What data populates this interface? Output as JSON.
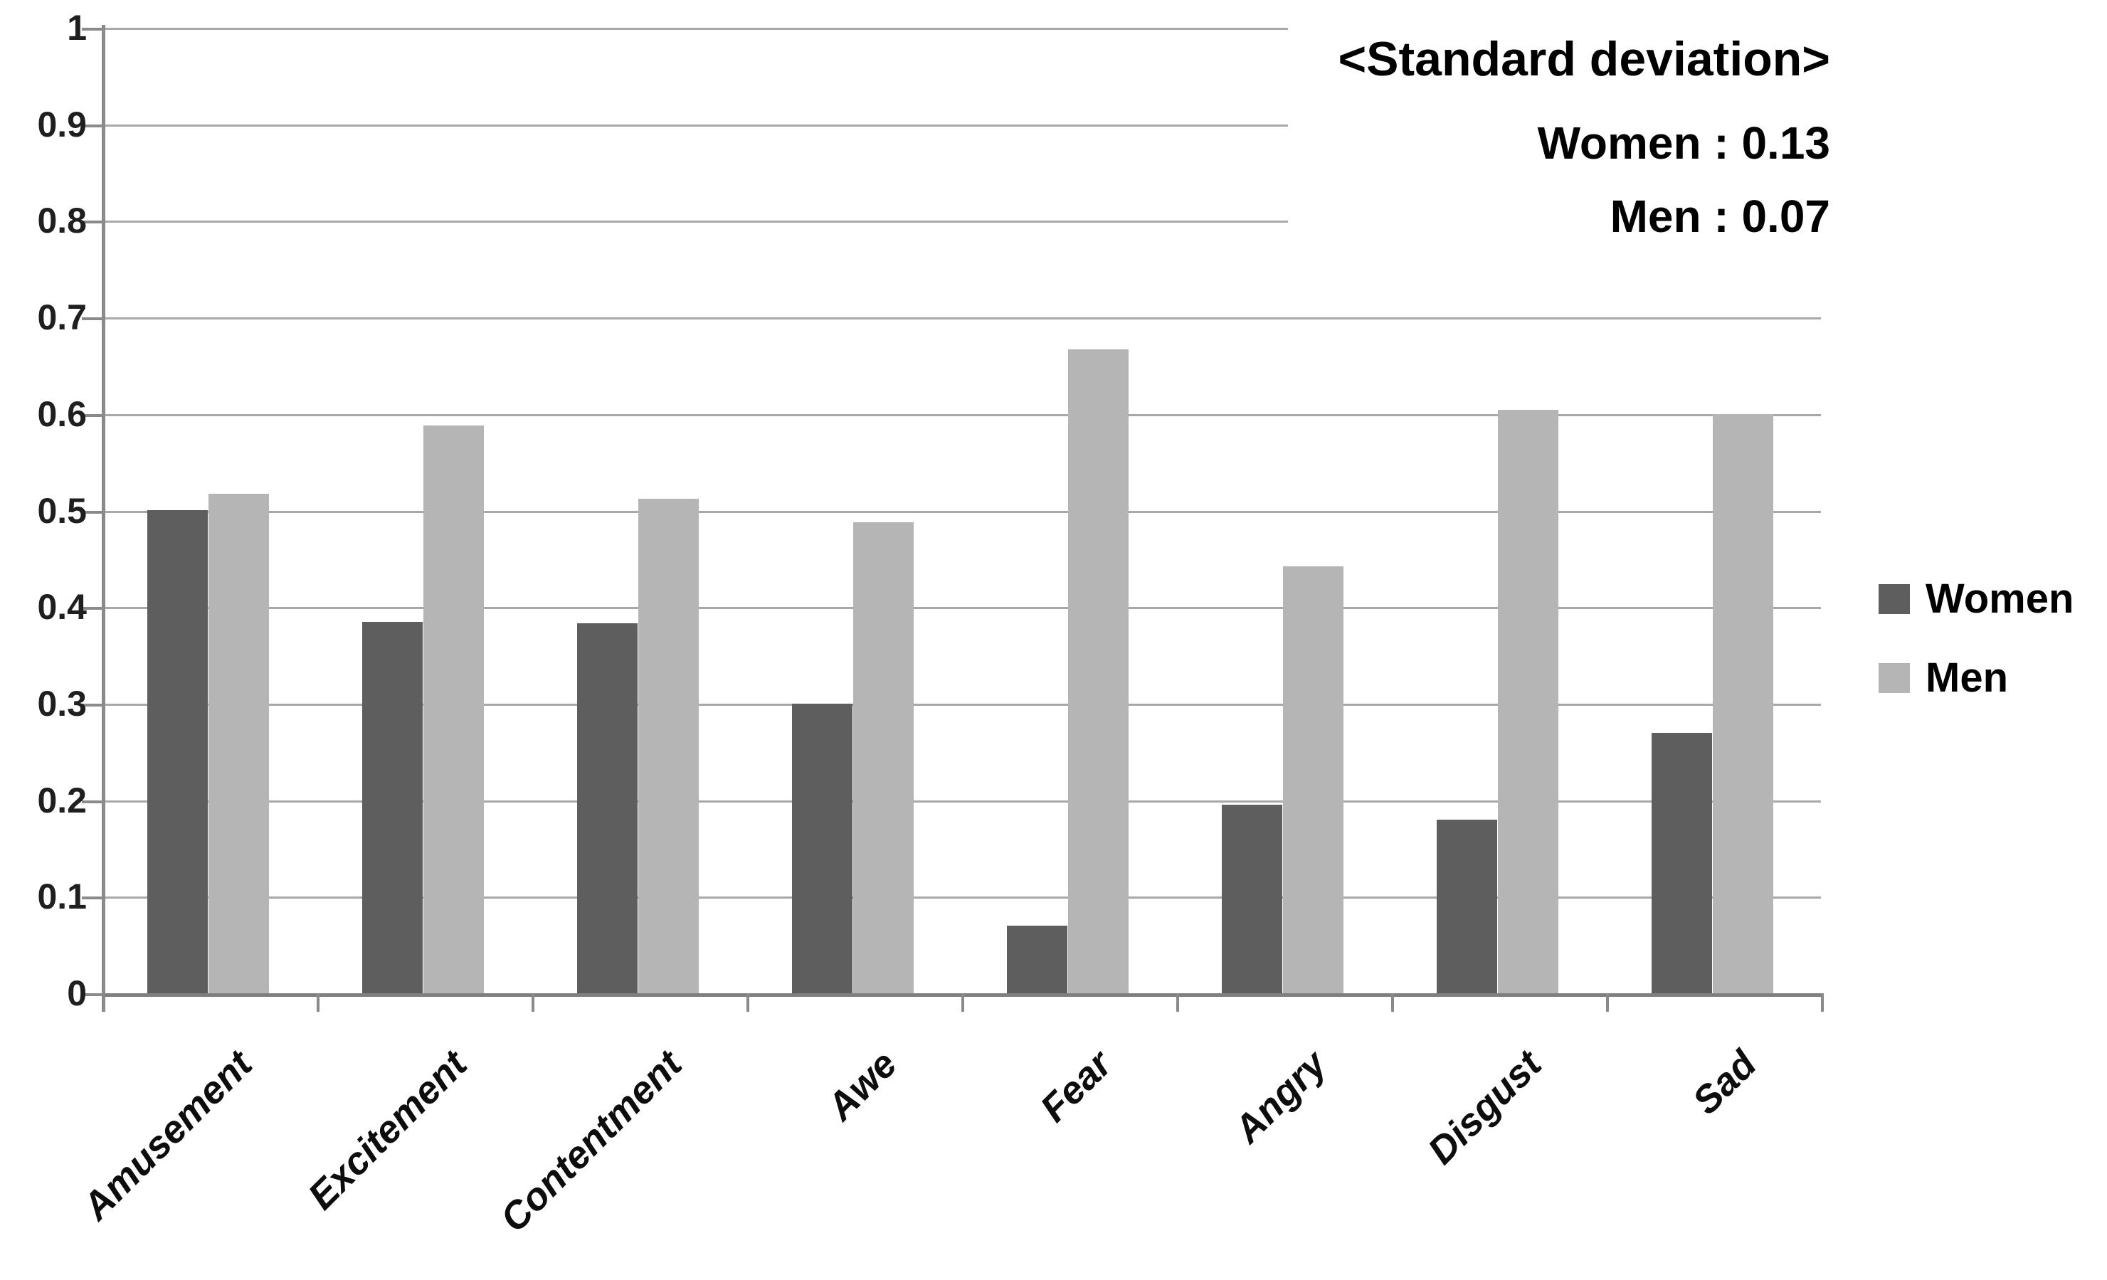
{
  "chart_data": {
    "type": "bar",
    "title": "",
    "categories": [
      "Amusement",
      "Excitement",
      "Contentment",
      "Awe",
      "Fear",
      "Angry",
      "Disgust",
      "Sad"
    ],
    "series": [
      {
        "name": "Women",
        "color": "#5e5e5e",
        "values": [
          0.5,
          0.385,
          0.383,
          0.3,
          0.07,
          0.195,
          0.18,
          0.27
        ]
      },
      {
        "name": "Men",
        "color": "#b5b5b5",
        "values": [
          0.517,
          0.588,
          0.512,
          0.488,
          0.667,
          0.442,
          0.604,
          0.6
        ]
      }
    ],
    "ylim": [
      0,
      1
    ],
    "ytick_labels": [
      "0",
      "0.1",
      "0.2",
      "0.3",
      "0.4",
      "0.5",
      "0.6",
      "0.7",
      "0.8",
      "0.9",
      "1"
    ],
    "grid": true,
    "legend_position": "right",
    "xlabel": "",
    "ylabel": ""
  },
  "annotation": {
    "title": "<Standard deviation>",
    "line1": "Women : 0.13",
    "line2": "Men : 0.07"
  },
  "legend": {
    "items": [
      {
        "label": "Women",
        "color": "#5e5e5e"
      },
      {
        "label": "Men",
        "color": "#b5b5b5"
      }
    ]
  },
  "colors": {
    "women_bar": "#5e5e5e",
    "men_bar": "#b5b5b5",
    "gridline": "#a8a8a8",
    "axis": "#7f7f7f",
    "text": "#000000"
  }
}
